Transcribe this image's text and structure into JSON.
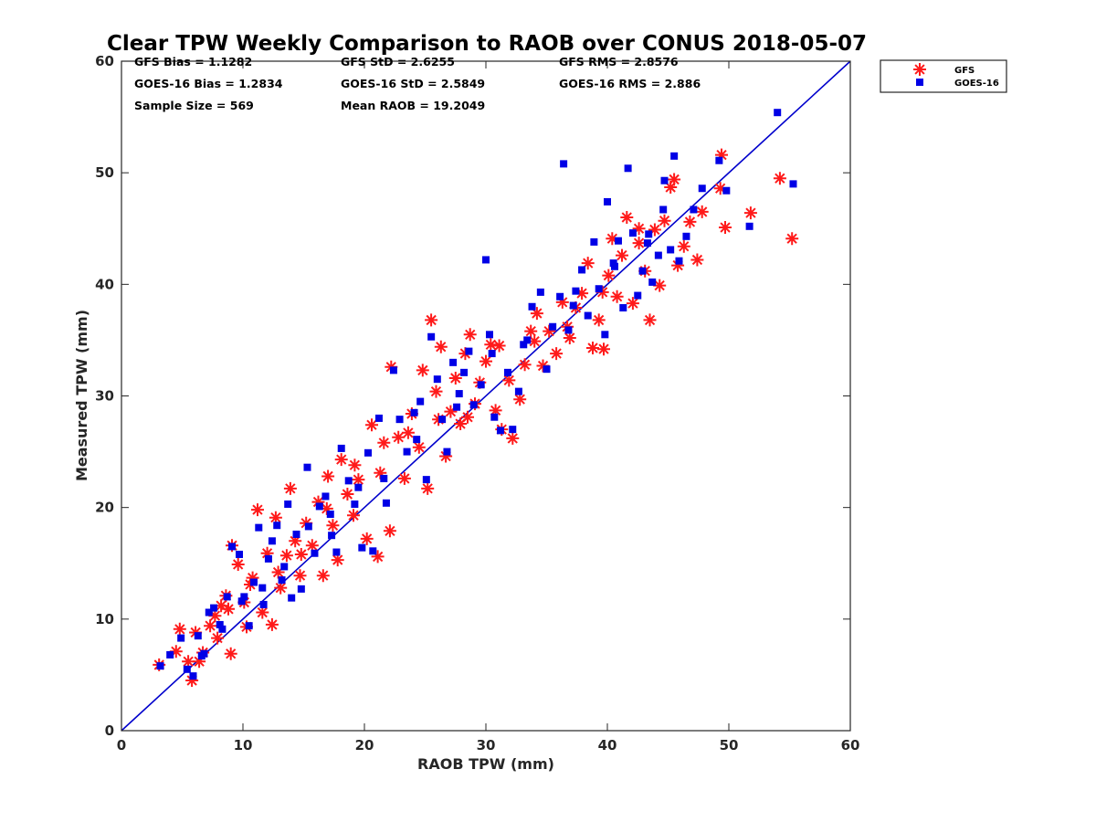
{
  "chart_data": {
    "type": "scatter",
    "title": "Clear TPW Weekly Comparison to RAOB over CONUS 2018-05-07",
    "xlabel": "RAOB TPW (mm)",
    "ylabel": "Measured TPW (mm)",
    "xlim": [
      0,
      60
    ],
    "ylim": [
      0,
      60
    ],
    "xticks": [
      "0",
      "10",
      "20",
      "30",
      "40",
      "50",
      "60"
    ],
    "yticks": [
      "0",
      "10",
      "20",
      "30",
      "40",
      "50",
      "60"
    ],
    "stats": {
      "gfs_bias": "GFS Bias = 1.1282",
      "gfs_std": "GFS StD = 2.6255",
      "gfs_rms": "GFS RMS = 2.8576",
      "goes_bias": "GOES-16 Bias = 1.2834",
      "goes_std": "GOES-16 StD = 2.5849",
      "goes_rms": "GOES-16 RMS = 2.886",
      "sample_size": "Sample Size = 569",
      "mean_raob": "Mean RAOB = 19.2049"
    },
    "legend": {
      "position": "top-right outside",
      "items": [
        "GFS",
        "GOES-16"
      ]
    },
    "reference_line": {
      "name": "1:1",
      "color": "#0000cc",
      "from": [
        0,
        0
      ],
      "to": [
        60,
        60
      ]
    },
    "series": [
      {
        "name": "GFS",
        "marker": "asterisk",
        "color": "#ff1a1a",
        "points": [
          [
            3.1,
            5.9
          ],
          [
            4.5,
            7.1
          ],
          [
            4.8,
            9.1
          ],
          [
            5.5,
            6.2
          ],
          [
            5.8,
            4.5
          ],
          [
            6.1,
            8.8
          ],
          [
            6.7,
            7.0
          ],
          [
            7.3,
            9.4
          ],
          [
            7.7,
            10.3
          ],
          [
            8.2,
            11.2
          ],
          [
            8.6,
            12.1
          ],
          [
            9.0,
            6.9
          ],
          [
            9.1,
            16.6
          ],
          [
            9.6,
            14.9
          ],
          [
            10.1,
            11.5
          ],
          [
            10.3,
            9.3
          ],
          [
            10.8,
            13.7
          ],
          [
            11.2,
            19.8
          ],
          [
            11.6,
            10.6
          ],
          [
            12.0,
            15.9
          ],
          [
            12.4,
            9.5
          ],
          [
            12.7,
            19.1
          ],
          [
            13.1,
            12.8
          ],
          [
            13.6,
            15.7
          ],
          [
            13.9,
            21.7
          ],
          [
            14.3,
            17.0
          ],
          [
            14.7,
            13.9
          ],
          [
            15.2,
            18.6
          ],
          [
            15.7,
            16.6
          ],
          [
            16.2,
            20.5
          ],
          [
            16.6,
            13.9
          ],
          [
            17.0,
            22.8
          ],
          [
            17.4,
            18.4
          ],
          [
            17.8,
            15.3
          ],
          [
            18.1,
            24.3
          ],
          [
            18.6,
            21.2
          ],
          [
            19.1,
            19.3
          ],
          [
            19.5,
            22.5
          ],
          [
            20.2,
            17.2
          ],
          [
            20.6,
            27.4
          ],
          [
            21.1,
            15.6
          ],
          [
            21.6,
            25.8
          ],
          [
            22.1,
            17.9
          ],
          [
            22.2,
            32.6
          ],
          [
            22.8,
            26.3
          ],
          [
            23.3,
            22.6
          ],
          [
            23.9,
            28.4
          ],
          [
            24.5,
            25.4
          ],
          [
            24.8,
            32.3
          ],
          [
            25.2,
            21.7
          ],
          [
            25.5,
            36.8
          ],
          [
            25.9,
            30.4
          ],
          [
            26.3,
            34.4
          ],
          [
            26.7,
            24.6
          ],
          [
            27.1,
            28.6
          ],
          [
            27.5,
            31.6
          ],
          [
            27.9,
            27.5
          ],
          [
            28.3,
            33.8
          ],
          [
            28.7,
            35.5
          ],
          [
            29.1,
            29.3
          ],
          [
            29.5,
            31.2
          ],
          [
            30.0,
            33.1
          ],
          [
            30.4,
            34.6
          ],
          [
            30.8,
            28.7
          ],
          [
            31.3,
            27.0
          ],
          [
            31.9,
            31.4
          ],
          [
            32.2,
            26.2
          ],
          [
            32.8,
            29.7
          ],
          [
            33.2,
            32.8
          ],
          [
            33.7,
            35.8
          ],
          [
            34.2,
            37.4
          ],
          [
            34.7,
            32.7
          ],
          [
            35.2,
            35.8
          ],
          [
            35.8,
            33.8
          ],
          [
            36.3,
            38.4
          ],
          [
            36.9,
            35.2
          ],
          [
            37.4,
            37.9
          ],
          [
            37.9,
            39.2
          ],
          [
            38.4,
            41.9
          ],
          [
            38.8,
            34.3
          ],
          [
            39.3,
            36.8
          ],
          [
            39.7,
            34.2
          ],
          [
            40.1,
            40.8
          ],
          [
            40.4,
            44.1
          ],
          [
            40.8,
            38.9
          ],
          [
            41.2,
            42.6
          ],
          [
            41.6,
            46.0
          ],
          [
            42.1,
            38.3
          ],
          [
            42.6,
            43.7
          ],
          [
            43.1,
            41.2
          ],
          [
            43.5,
            36.8
          ],
          [
            43.9,
            44.9
          ],
          [
            44.3,
            39.9
          ],
          [
            44.7,
            45.7
          ],
          [
            45.2,
            48.7
          ],
          [
            45.5,
            49.4
          ],
          [
            45.8,
            41.7
          ],
          [
            46.3,
            43.4
          ],
          [
            46.8,
            45.6
          ],
          [
            47.4,
            42.2
          ],
          [
            47.8,
            46.5
          ],
          [
            49.3,
            48.6
          ],
          [
            49.4,
            51.6
          ],
          [
            49.7,
            45.1
          ],
          [
            51.8,
            46.4
          ],
          [
            54.2,
            49.5
          ],
          [
            55.2,
            44.1
          ],
          [
            6.4,
            6.2
          ],
          [
            7.9,
            8.3
          ],
          [
            8.8,
            10.9
          ],
          [
            10.6,
            13.1
          ],
          [
            12.9,
            14.2
          ],
          [
            14.8,
            15.8
          ],
          [
            16.9,
            19.9
          ],
          [
            19.2,
            23.8
          ],
          [
            21.3,
            23.1
          ],
          [
            23.6,
            26.7
          ],
          [
            26.1,
            27.9
          ],
          [
            28.5,
            28.1
          ],
          [
            31.1,
            34.5
          ],
          [
            34.0,
            34.9
          ],
          [
            36.7,
            36.2
          ],
          [
            39.6,
            39.3
          ],
          [
            42.6,
            45.0
          ]
        ]
      },
      {
        "name": "GOES-16",
        "marker": "square",
        "color": "#0000e6",
        "points": [
          [
            3.2,
            5.8
          ],
          [
            4.0,
            6.8
          ],
          [
            4.9,
            8.3
          ],
          [
            5.4,
            5.5
          ],
          [
            5.9,
            4.9
          ],
          [
            6.3,
            8.5
          ],
          [
            6.8,
            6.9
          ],
          [
            7.2,
            10.6
          ],
          [
            7.6,
            11.0
          ],
          [
            8.1,
            9.5
          ],
          [
            8.7,
            12.0
          ],
          [
            9.1,
            16.5
          ],
          [
            9.7,
            15.8
          ],
          [
            10.1,
            12.0
          ],
          [
            10.5,
            9.4
          ],
          [
            10.9,
            13.3
          ],
          [
            11.3,
            18.2
          ],
          [
            11.7,
            11.3
          ],
          [
            12.1,
            15.4
          ],
          [
            12.4,
            17.0
          ],
          [
            12.8,
            18.4
          ],
          [
            13.2,
            13.5
          ],
          [
            13.7,
            20.3
          ],
          [
            14.0,
            11.9
          ],
          [
            14.4,
            17.6
          ],
          [
            14.8,
            12.7
          ],
          [
            15.3,
            23.6
          ],
          [
            15.9,
            15.9
          ],
          [
            16.3,
            20.1
          ],
          [
            16.8,
            21.0
          ],
          [
            17.3,
            17.5
          ],
          [
            17.7,
            16.0
          ],
          [
            18.1,
            25.3
          ],
          [
            18.7,
            22.4
          ],
          [
            19.2,
            20.3
          ],
          [
            19.8,
            16.4
          ],
          [
            20.3,
            24.9
          ],
          [
            20.7,
            16.1
          ],
          [
            21.2,
            28.0
          ],
          [
            21.8,
            20.4
          ],
          [
            22.4,
            32.3
          ],
          [
            22.9,
            27.9
          ],
          [
            23.5,
            25.0
          ],
          [
            24.1,
            28.5
          ],
          [
            24.6,
            29.5
          ],
          [
            25.1,
            22.5
          ],
          [
            25.5,
            35.3
          ],
          [
            26.0,
            31.5
          ],
          [
            26.4,
            27.9
          ],
          [
            26.8,
            25.0
          ],
          [
            27.3,
            33.0
          ],
          [
            27.8,
            30.2
          ],
          [
            28.2,
            32.1
          ],
          [
            28.6,
            34.0
          ],
          [
            29.0,
            29.2
          ],
          [
            29.6,
            31.0
          ],
          [
            30.0,
            42.2
          ],
          [
            30.3,
            35.5
          ],
          [
            30.7,
            28.1
          ],
          [
            31.2,
            26.9
          ],
          [
            31.8,
            32.1
          ],
          [
            32.2,
            27.0
          ],
          [
            32.7,
            30.4
          ],
          [
            33.4,
            35.0
          ],
          [
            33.8,
            38.0
          ],
          [
            34.5,
            39.3
          ],
          [
            35.0,
            32.4
          ],
          [
            35.5,
            36.2
          ],
          [
            36.1,
            38.9
          ],
          [
            36.4,
            50.8
          ],
          [
            36.8,
            35.9
          ],
          [
            37.4,
            39.4
          ],
          [
            37.9,
            41.3
          ],
          [
            38.4,
            37.2
          ],
          [
            38.9,
            43.8
          ],
          [
            39.3,
            39.6
          ],
          [
            39.8,
            35.5
          ],
          [
            40.0,
            47.4
          ],
          [
            40.5,
            41.9
          ],
          [
            40.9,
            43.9
          ],
          [
            41.3,
            37.9
          ],
          [
            41.7,
            50.4
          ],
          [
            42.1,
            44.6
          ],
          [
            42.5,
            39.0
          ],
          [
            42.9,
            41.2
          ],
          [
            43.3,
            43.7
          ],
          [
            43.7,
            40.2
          ],
          [
            44.2,
            42.6
          ],
          [
            44.6,
            46.7
          ],
          [
            44.7,
            49.3
          ],
          [
            45.2,
            43.1
          ],
          [
            45.5,
            51.5
          ],
          [
            45.9,
            42.1
          ],
          [
            46.5,
            44.3
          ],
          [
            47.1,
            46.7
          ],
          [
            47.8,
            48.6
          ],
          [
            49.2,
            51.1
          ],
          [
            49.8,
            48.4
          ],
          [
            51.7,
            45.2
          ],
          [
            54.0,
            55.4
          ],
          [
            55.3,
            49.0
          ],
          [
            6.6,
            6.7
          ],
          [
            8.3,
            9.1
          ],
          [
            9.9,
            11.6
          ],
          [
            11.6,
            12.8
          ],
          [
            13.4,
            14.7
          ],
          [
            15.4,
            18.3
          ],
          [
            17.2,
            19.4
          ],
          [
            19.5,
            21.8
          ],
          [
            21.6,
            22.6
          ],
          [
            24.3,
            26.1
          ],
          [
            27.6,
            29.0
          ],
          [
            30.5,
            33.8
          ],
          [
            33.1,
            34.6
          ],
          [
            37.2,
            38.1
          ],
          [
            40.6,
            41.6
          ],
          [
            43.4,
            44.5
          ]
        ]
      }
    ]
  }
}
